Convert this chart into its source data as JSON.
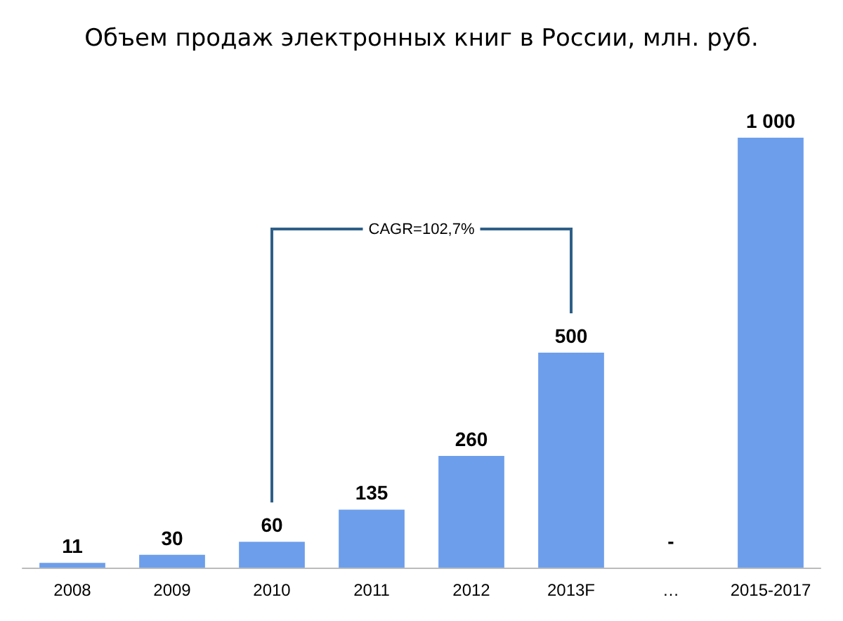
{
  "chart_data": {
    "type": "bar",
    "title": "Объем продаж электронных книг в России, млн. руб.",
    "categories": [
      "2008",
      "2009",
      "2010",
      "2011",
      "2012",
      "2013F",
      "…",
      "2015-2017"
    ],
    "values": [
      11,
      30,
      60,
      135,
      260,
      500,
      null,
      1000
    ],
    "value_labels": [
      "11",
      "30",
      "60",
      "135",
      "260",
      "500",
      "-",
      "1 000"
    ],
    "color": "#6d9eeb",
    "annotations": [
      "CAGR=102,7%"
    ]
  }
}
